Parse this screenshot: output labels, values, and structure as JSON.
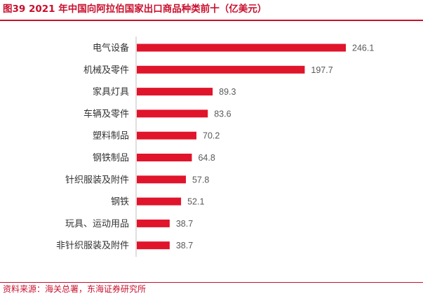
{
  "figure": {
    "title": "图39  2021 年中国向阿拉伯国家出口商品种类前十（亿美元）",
    "source": "资料来源：海关总署，东海证券研究所",
    "accent_color": "#c8102e"
  },
  "chart_data": {
    "type": "bar",
    "orientation": "horizontal",
    "categories": [
      "电气设备",
      "机械及零件",
      "家具灯具",
      "车辆及零件",
      "塑料制品",
      "钢铁制品",
      "针织服装及附件",
      "钢铁",
      "玩具、运动用品",
      "非针织服装及附件"
    ],
    "values": [
      246.1,
      197.7,
      89.3,
      83.6,
      70.2,
      64.8,
      57.8,
      52.1,
      38.7,
      38.7
    ],
    "value_labels": [
      "246.1",
      "197.7",
      "89.3",
      "83.6",
      "70.2",
      "64.8",
      "57.8",
      "52.1",
      "38.7",
      "38.7"
    ],
    "xlim": [
      0,
      246.1
    ],
    "bar_color": "#e0142b",
    "grid": false,
    "legend": "none"
  }
}
